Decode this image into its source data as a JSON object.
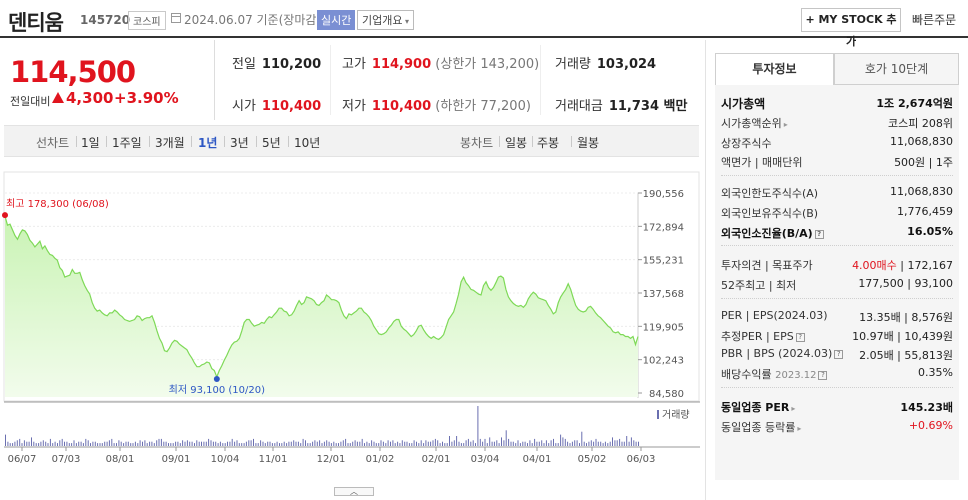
{
  "header": {
    "name": "덴티움",
    "code": "145720",
    "market": "코스피",
    "date": "2024.06.07 기준(장마감)",
    "realtime": "실시간",
    "company_btn": "기업개요",
    "mystock_btn": "+ MY STOCK 추가",
    "quick_order": "빠른주문"
  },
  "price": {
    "current": "114,500",
    "diff_label": "전일대비",
    "diff": "4,300",
    "diff_pct": "+3.90%"
  },
  "summary": {
    "prev_label": "전일",
    "prev": "110,200",
    "high_label": "고가",
    "high": "114,900",
    "upper_limit": "(상한가 143,200)",
    "volume_label": "거래량",
    "volume": "103,024",
    "open_label": "시가",
    "open": "110,400",
    "low_label": "저가",
    "low": "110,400",
    "lower_limit": "(하한가 77,200)",
    "amount_label": "거래대금",
    "amount": "11,734 백만"
  },
  "period_bar": {
    "line_label": "선차트",
    "line_items": [
      "1일",
      "1주일",
      "3개월",
      "1년",
      "3년",
      "5년",
      "10년"
    ],
    "selected": "1년",
    "candle_label": "봉차트",
    "candle_items": [
      "일봉",
      "주봉",
      "월봉"
    ]
  },
  "chart_data": {
    "type": "area",
    "y_ticks": [
      "190,556",
      "172,894",
      "155,231",
      "137,568",
      "119,905",
      "102,243",
      "84,580"
    ],
    "ylim": [
      84580,
      190556
    ],
    "x_labels": [
      "06/07",
      "07/03",
      "08/01",
      "09/01",
      "10/04",
      "11/01",
      "12/01",
      "01/02",
      "02/01",
      "03/04",
      "04/01",
      "05/02",
      "06/03"
    ],
    "high_label": "최고 178,300 (06/08)",
    "low_label": "최저 93,100 (10/20)",
    "volume_label": "거래량",
    "accent": "#7ed957",
    "prices": [
      178300,
      173500,
      174000,
      171000,
      168000,
      166000,
      169000,
      171000,
      170500,
      168500,
      165500,
      164000,
      162000,
      163500,
      165000,
      161000,
      162500,
      160000,
      158000,
      157500,
      156000,
      155000,
      151000,
      149500,
      146000,
      146500,
      147000,
      150000,
      148000,
      148000,
      148500,
      144500,
      141500,
      139000,
      137000,
      132500,
      129500,
      128000,
      128500,
      127000,
      126000,
      125500,
      127000,
      127000,
      128500,
      127500,
      126000,
      125000,
      123500,
      123000,
      122500,
      123000,
      123500,
      125500,
      125000,
      123000,
      124000,
      124500,
      124500,
      125500,
      122000,
      117500,
      113500,
      111000,
      107000,
      106500,
      108500,
      111000,
      112500,
      112000,
      110500,
      109500,
      108500,
      107500,
      105000,
      103000,
      100500,
      98500,
      98500,
      99500,
      100000,
      101000,
      100500,
      97500,
      96500,
      93100,
      96500,
      99000,
      102000,
      104500,
      107500,
      110000,
      111500,
      112000,
      113500,
      117500,
      122000,
      123500,
      123500,
      121500,
      120000,
      120500,
      121000,
      122000,
      121500,
      123500,
      125000,
      124500,
      126000,
      127500,
      129500,
      129500,
      128000,
      127500,
      125500,
      126000,
      128000,
      131000,
      133500,
      131500,
      132500,
      135500,
      135000,
      134500,
      133500,
      131500,
      131000,
      132500,
      133500,
      136500,
      135500,
      134000,
      134000,
      133500,
      132500,
      128500,
      125500,
      124000,
      126500,
      126000,
      127000,
      128000,
      129500,
      129500,
      127500,
      126500,
      125000,
      123000,
      120000,
      118000,
      116000,
      115500,
      116000,
      117000,
      119000,
      120500,
      122500,
      123500,
      123500,
      120000,
      118500,
      117500,
      116000,
      114500,
      115500,
      117500,
      120000,
      120500,
      118000,
      116000,
      114500,
      113500,
      114500,
      113500,
      113000,
      114000,
      115500,
      119500,
      123500,
      125500,
      127500,
      132000,
      137000,
      143500,
      146000,
      143000,
      141500,
      139500,
      139000,
      138000,
      137000,
      136500,
      141500,
      143500,
      140500,
      139000,
      140500,
      143000,
      146000,
      146500,
      145500,
      139500,
      135500,
      133500,
      132000,
      131000,
      130500,
      131000,
      130000,
      131500,
      134500,
      136500,
      138000,
      137000,
      135000,
      134500,
      134000,
      133500,
      131000,
      129000,
      126500,
      127500,
      132500,
      135500,
      137500,
      139500,
      142500,
      139500,
      135000,
      131000,
      129000,
      128000,
      127500,
      128000,
      130000,
      130500,
      129000,
      127000,
      125500,
      124500,
      123000,
      121500,
      120000,
      119000,
      117000,
      116500,
      117000,
      115500,
      115500,
      114500,
      114500,
      113500,
      114500,
      110200,
      114500
    ],
    "volumes": [
      8,
      3,
      2,
      2,
      3,
      4,
      5,
      2,
      4,
      3,
      3,
      6,
      3,
      2,
      2,
      3,
      4,
      3,
      2,
      5,
      2,
      3,
      2,
      4,
      5,
      3,
      3,
      2,
      2,
      4,
      2,
      3,
      3,
      2,
      5,
      4,
      2,
      3,
      3,
      2,
      2,
      2,
      3,
      3,
      4,
      5,
      2,
      2,
      4,
      3,
      2,
      3,
      3,
      2,
      2,
      3,
      2,
      4,
      3,
      4,
      2,
      3,
      3,
      2,
      4,
      5,
      5,
      3,
      3,
      2,
      2,
      2,
      3,
      3,
      2,
      4,
      3,
      4,
      3,
      3,
      2,
      4,
      3,
      3,
      3,
      3,
      5,
      4,
      3,
      3,
      2,
      3,
      2,
      2,
      3,
      3,
      5,
      3,
      4,
      2,
      2,
      2,
      3,
      4,
      4,
      5,
      2,
      2,
      4,
      3,
      2,
      3,
      3,
      2,
      2,
      3,
      2,
      2,
      3,
      2,
      3,
      3,
      4,
      3,
      3,
      2,
      5,
      4,
      2,
      2,
      3,
      4,
      3,
      4,
      2,
      3,
      4,
      3,
      2,
      3,
      2,
      2,
      3,
      4,
      5,
      2,
      2,
      3,
      4,
      3,
      3,
      5,
      2,
      3,
      2,
      4,
      3,
      2,
      2,
      4,
      3,
      2,
      4,
      3,
      4,
      2,
      3,
      2,
      4,
      3,
      3,
      2,
      2,
      4,
      3,
      2,
      4,
      2,
      4,
      3,
      3,
      4,
      5,
      4,
      2,
      3,
      2,
      2,
      7,
      3,
      4,
      7,
      3,
      2,
      2,
      4,
      5,
      3,
      4,
      2,
      28,
      5,
      3,
      5,
      2,
      6,
      3,
      3,
      4,
      2,
      6,
      4,
      11,
      5,
      3,
      3,
      2,
      4,
      2,
      3,
      3,
      2,
      4,
      2,
      5,
      3,
      3,
      4,
      2,
      4,
      2,
      4,
      5,
      2,
      2,
      8,
      6,
      5,
      3,
      2,
      3,
      4,
      4,
      2,
      10,
      3,
      2,
      3,
      4,
      3,
      5,
      3,
      3,
      2,
      3,
      2,
      3,
      6,
      4,
      4,
      5,
      3,
      3,
      7,
      3,
      6,
      4,
      3,
      3
    ]
  },
  "invest": {
    "tab1": "투자정보",
    "tab2": "호가 10단계",
    "mkt_cap_label": "시가총액",
    "mkt_cap": "1조 2,674억원",
    "mkt_rank_label": "시가총액순위",
    "mkt_rank": "코스피 208위",
    "shares_label": "상장주식수",
    "shares": "11,068,830",
    "face_label": "액면가 | 매매단위",
    "face": "500원 | 1주",
    "foreign_limit_label": "외국인한도주식수(A)",
    "foreign_limit": "11,068,830",
    "foreign_hold_label": "외국인보유주식수(B)",
    "foreign_hold": "1,776,459",
    "foreign_ratio_label": "외국인소진율(B/A)",
    "foreign_ratio": "16.05%",
    "opinion_label": "투자의견 | 목표주가",
    "opinion": "4.00매수",
    "target": "| 172,167",
    "w52_label": "52주최고 | 최저",
    "w52": "177,500 | 93,100",
    "per_label": "PER | EPS(2024.03)",
    "per": "13.35배 | 8,576원",
    "eper_label": "추정PER | EPS",
    "eper": "10.97배 | 10,439원",
    "pbr_label": "PBR | BPS (2024.03)",
    "pbr": "2.05배 | 55,813원",
    "div_label": "배당수익률",
    "div_date": "2023.12",
    "div": "0.35%",
    "sector_per_label": "동일업종 PER",
    "sector_per": "145.23배",
    "sector_chg_label": "동일업종 등락률",
    "sector_chg": "+0.69%"
  }
}
